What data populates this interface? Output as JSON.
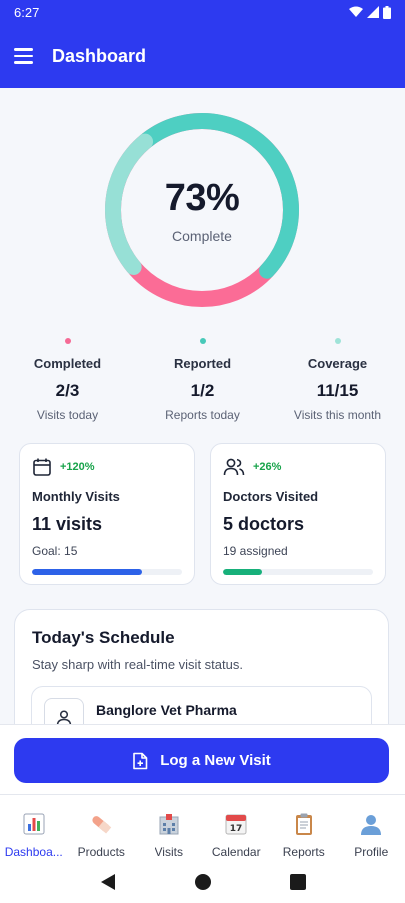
{
  "status_bar": {
    "time": "6:27"
  },
  "app_bar": {
    "title": "Dashboard"
  },
  "progress_ring": {
    "percent_text": "73%",
    "label": "Complete",
    "percent_value": 73,
    "colors": {
      "pink": "#fb6c96",
      "teal": "#4ecfc2",
      "light_teal": "#97e0d6"
    }
  },
  "stats": [
    {
      "label": "Completed",
      "value": "2/3",
      "sub": "Visits today",
      "color": "#f56a95"
    },
    {
      "label": "Reported",
      "value": "1/2",
      "sub": "Reports today",
      "color": "#47c9b9"
    },
    {
      "label": "Coverage",
      "value": "11/15",
      "sub": "Visits this month",
      "color": "#9fe3d8"
    }
  ],
  "cards": [
    {
      "icon": "calendar-icon",
      "badge": "+120%",
      "title": "Monthly Visits",
      "value": "11 visits",
      "sub": "Goal: 15",
      "progress": 0.73,
      "color": "#2d62e8"
    },
    {
      "icon": "users-icon",
      "badge": "+26%",
      "title": "Doctors Visited",
      "value": "5 doctors",
      "sub": "19 assigned",
      "progress": 0.26,
      "color": "#17b07a"
    }
  ],
  "schedule": {
    "title": "Today's Schedule",
    "subtitle": "Stay sharp with real-time visit status.",
    "first_visit": "Banglore Vet Pharma"
  },
  "action": {
    "label": "Log a New Visit"
  },
  "bottom_nav": [
    {
      "label": "Dashboa...",
      "icon": "chart-icon",
      "active": true
    },
    {
      "label": "Products",
      "icon": "pill-icon",
      "active": false
    },
    {
      "label": "Visits",
      "icon": "hospital-icon",
      "active": false
    },
    {
      "label": "Calendar",
      "icon": "calendar-icon",
      "active": false
    },
    {
      "label": "Reports",
      "icon": "clipboard-icon",
      "active": false
    },
    {
      "label": "Profile",
      "icon": "user-icon",
      "active": false
    }
  ]
}
